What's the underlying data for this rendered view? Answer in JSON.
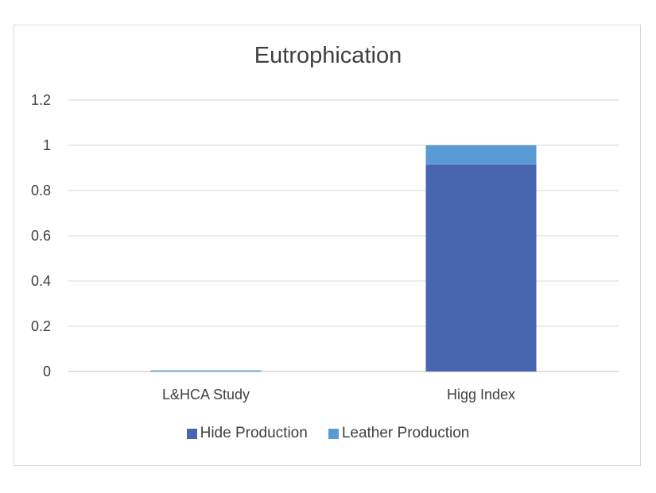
{
  "chart_data": {
    "type": "bar",
    "stacked": true,
    "title": "Eutrophication",
    "xlabel": "",
    "ylabel": "",
    "categories": [
      "L&HCA Study",
      "Higg Index"
    ],
    "series": [
      {
        "name": "Hide Production",
        "values": [
          0.0,
          0.915
        ],
        "color": "#4765b0"
      },
      {
        "name": "Leather Production",
        "values": [
          0.005,
          0.085
        ],
        "color": "#5b9bd5"
      }
    ],
    "ylim": [
      0,
      1.2
    ],
    "yticks": [
      "0",
      "0.2",
      "0.4",
      "0.6",
      "0.8",
      "1",
      "1.2"
    ],
    "ytick_values": [
      0,
      0.2,
      0.4,
      0.6,
      0.8,
      1,
      1.2
    ],
    "grid": true,
    "legend_position": "bottom"
  }
}
